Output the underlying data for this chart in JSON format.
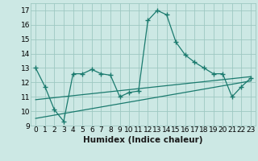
{
  "title": "",
  "xlabel": "Humidex (Indice chaleur)",
  "xlim": [
    -0.5,
    23.5
  ],
  "ylim": [
    9,
    17.5
  ],
  "yticks": [
    9,
    10,
    11,
    12,
    13,
    14,
    15,
    16,
    17
  ],
  "xticks": [
    0,
    1,
    2,
    3,
    4,
    5,
    6,
    7,
    8,
    9,
    10,
    11,
    12,
    13,
    14,
    15,
    16,
    17,
    18,
    19,
    20,
    21,
    22,
    23
  ],
  "main_x": [
    0,
    1,
    2,
    3,
    4,
    5,
    6,
    7,
    8,
    9,
    10,
    11,
    12,
    13,
    14,
    15,
    16,
    17,
    18,
    19,
    20,
    21,
    22,
    23
  ],
  "main_y": [
    13.0,
    11.7,
    10.1,
    9.3,
    12.6,
    12.6,
    12.9,
    12.6,
    12.5,
    11.0,
    11.3,
    11.4,
    16.3,
    17.0,
    16.7,
    14.8,
    13.9,
    13.4,
    13.0,
    12.6,
    12.6,
    11.0,
    11.7,
    12.3
  ],
  "line1_x": [
    0,
    23
  ],
  "line1_y": [
    10.8,
    12.4
  ],
  "line2_x": [
    0,
    23
  ],
  "line2_y": [
    9.5,
    12.1
  ],
  "color": "#1a7a6e",
  "bg_color": "#cce8e4",
  "grid_color": "#9ec8c2",
  "marker": "+",
  "marker_size": 4,
  "line_width": 0.9,
  "tick_fontsize": 6.5,
  "xlabel_fontsize": 7.5
}
